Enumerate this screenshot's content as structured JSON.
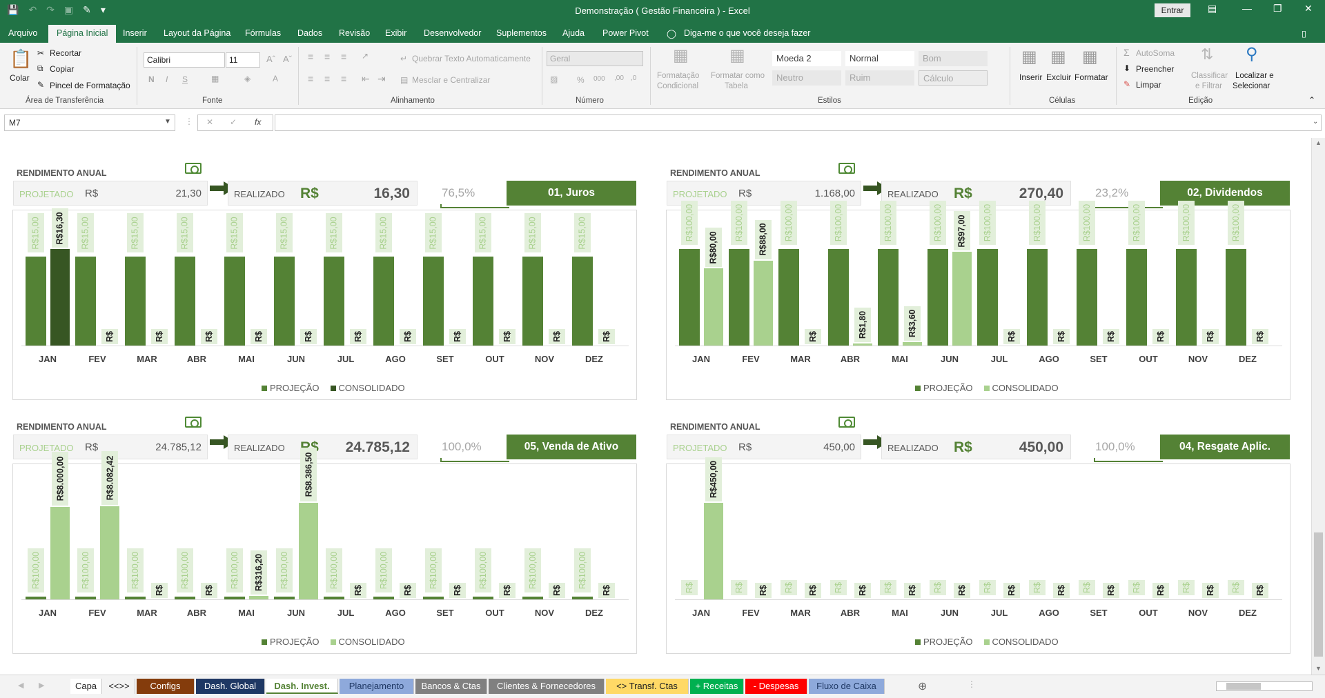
{
  "window": {
    "title": "Demonstração ( Gestão Financeira ) - Excel",
    "signin": "Entrar"
  },
  "ribbon_tabs": [
    "Arquivo",
    "Página Inicial",
    "Inserir",
    "Layout da Página",
    "Fórmulas",
    "Dados",
    "Revisão",
    "Exibir",
    "Desenvolvedor",
    "Suplementos",
    "Ajuda",
    "Power Pivot"
  ],
  "tell_me": "Diga-me o que você deseja fazer",
  "ribbon": {
    "clipboard": {
      "paste": "Colar",
      "cut": "Recortar",
      "copy": "Copiar",
      "painter": "Pincel de Formatação",
      "label": "Área de Transferência"
    },
    "font": {
      "name": "Calibri",
      "size": "11",
      "label": "Fonte"
    },
    "alignment": {
      "wrap": "Quebrar Texto Automaticamente",
      "merge": "Mesclar e Centralizar",
      "label": "Alinhamento"
    },
    "number": {
      "format": "Geral",
      "label": "Número"
    },
    "styles": {
      "cond_line1": "Formatação",
      "cond_line2": "Condicional",
      "table_line1": "Formatar como",
      "table_line2": "Tabela",
      "s1": "Moeda 2",
      "s2": "Normal",
      "s3": "Bom",
      "s4": "Neutro",
      "s5": "Ruim",
      "s6": "Cálculo",
      "label": "Estilos"
    },
    "cells": {
      "insert": "Inserir",
      "delete": "Excluir",
      "format": "Formatar",
      "label": "Células"
    },
    "editing": {
      "autosum": "AutoSoma",
      "fill": "Preencher",
      "clear": "Limpar",
      "sort_line1": "Classificar",
      "sort_line2": "e Filtrar",
      "find_line1": "Localizar e",
      "find_line2": "Selecionar",
      "label": "Edição"
    }
  },
  "formula_bar": {
    "namebox": "M7",
    "formula": ""
  },
  "colors": {
    "dark": "#548235",
    "darker": "#375623",
    "light": "#a9d18e",
    "pale": "#e2efda"
  },
  "panels": [
    {
      "rend": "RENDIMENTO ANUAL",
      "proj_label": "PROJETADO",
      "cur": "R$",
      "proj_value": "21,30",
      "real_label": "REALIZADO",
      "real_value": "16,30",
      "pct": "76,5%",
      "category": "01,  Juros",
      "chart_data": {
        "type": "bar",
        "categories": [
          "JAN",
          "FEV",
          "MAR",
          "ABR",
          "MAI",
          "JUN",
          "JUL",
          "AGO",
          "SET",
          "OUT",
          "NOV",
          "DEZ"
        ],
        "series": [
          {
            "name": "PROJEÇÃO",
            "values": [
              15,
              15,
              15,
              15,
              15,
              15,
              15,
              15,
              15,
              15,
              15,
              15
            ],
            "labels": [
              "R$15,00",
              "R$15,00",
              "R$15,00",
              "R$15,00",
              "R$15,00",
              "R$15,00",
              "R$15,00",
              "R$15,00",
              "R$15,00",
              "R$15,00",
              "R$15,00",
              "R$15,00"
            ]
          },
          {
            "name": "CONSOLIDADO",
            "values": [
              16.3,
              0,
              0,
              0,
              0,
              0,
              0,
              0,
              0,
              0,
              0,
              0
            ],
            "labels": [
              "R$16,30",
              "R$",
              "R$",
              "R$",
              "R$",
              "R$",
              "R$",
              "R$",
              "R$",
              "R$",
              "R$",
              "R$"
            ]
          }
        ],
        "ymax": 16.3,
        "cons_color": "#375623"
      }
    },
    {
      "rend": "RENDIMENTO ANUAL",
      "proj_label": "PROJETADO",
      "cur": "R$",
      "proj_value": "1.168,00",
      "real_label": "REALIZADO",
      "real_value": "270,40",
      "pct": "23,2%",
      "category": "02,  Dividendos",
      "chart_data": {
        "type": "bar",
        "categories": [
          "JAN",
          "FEV",
          "MAR",
          "ABR",
          "MAI",
          "JUN",
          "JUL",
          "AGO",
          "SET",
          "OUT",
          "NOV",
          "DEZ"
        ],
        "series": [
          {
            "name": "PROJEÇÃO",
            "values": [
              100,
              100,
              100,
              100,
              100,
              100,
              100,
              100,
              100,
              100,
              100,
              100
            ],
            "labels": [
              "R$100,00",
              "R$100,00",
              "R$100,00",
              "R$100,00",
              "R$100,00",
              "R$100,00",
              "R$100,00",
              "R$100,00",
              "R$100,00",
              "R$100,00",
              "R$100,00",
              "R$100,00"
            ]
          },
          {
            "name": "CONSOLIDADO",
            "values": [
              80,
              88,
              0,
              1.8,
              3.6,
              97,
              0,
              0,
              0,
              0,
              0,
              0
            ],
            "labels": [
              "R$80,00",
              "R$88,00",
              "R$",
              "R$1,80",
              "R$3,60",
              "R$97,00",
              "R$",
              "R$",
              "R$",
              "R$",
              "R$",
              "R$"
            ]
          }
        ],
        "ymax": 100,
        "cons_color": "#a9d18e"
      }
    },
    {
      "rend": "RENDIMENTO ANUAL",
      "proj_label": "PROJETADO",
      "cur": "R$",
      "proj_value": "24.785,12",
      "real_label": "REALIZADO",
      "real_value": "24.785,12",
      "pct": "100,0%",
      "category": "05,  Venda de Ativo",
      "chart_data": {
        "type": "bar",
        "categories": [
          "JAN",
          "FEV",
          "MAR",
          "ABR",
          "MAI",
          "JUN",
          "JUL",
          "AGO",
          "SET",
          "OUT",
          "NOV",
          "DEZ"
        ],
        "series": [
          {
            "name": "PROJEÇÃO",
            "values": [
              100,
              100,
              100,
              100,
              100,
              100,
              100,
              100,
              100,
              100,
              100,
              100
            ],
            "labels": [
              "R$100,00",
              "R$100,00",
              "R$100,00",
              "R$100,00",
              "R$100,00",
              "R$100,00",
              "R$100,00",
              "R$100,00",
              "R$100,00",
              "R$100,00",
              "R$100,00",
              "R$100,00"
            ]
          },
          {
            "name": "CONSOLIDADO",
            "values": [
              8000,
              8082.42,
              0,
              0,
              316.2,
              8386.5,
              0,
              0,
              0,
              0,
              0,
              0
            ],
            "labels": [
              "R$8.000,00",
              "R$8.082,42",
              "R$",
              "R$",
              "R$316,20",
              "R$8.386,50",
              "R$",
              "R$",
              "R$",
              "R$",
              "R$",
              "R$"
            ]
          }
        ],
        "ymax": 8386.5,
        "cons_color": "#a9d18e"
      }
    },
    {
      "rend": "RENDIMENTO ANUAL",
      "proj_label": "PROJETADO",
      "cur": "R$",
      "proj_value": "450,00",
      "real_label": "REALIZADO",
      "real_value": "450,00",
      "pct": "100,0%",
      "category": "04,  Resgate Aplic.",
      "chart_data": {
        "type": "bar",
        "categories": [
          "JAN",
          "FEV",
          "MAR",
          "ABR",
          "MAI",
          "JUN",
          "JUL",
          "AGO",
          "SET",
          "OUT",
          "NOV",
          "DEZ"
        ],
        "series": [
          {
            "name": "PROJEÇÃO",
            "values": [
              0,
              0,
              0,
              0,
              0,
              0,
              0,
              0,
              0,
              0,
              0,
              0
            ],
            "labels": [
              "R$",
              "R$",
              "R$",
              "R$",
              "R$",
              "R$",
              "R$",
              "R$",
              "R$",
              "R$",
              "R$",
              "R$"
            ]
          },
          {
            "name": "CONSOLIDADO",
            "values": [
              450,
              0,
              0,
              0,
              0,
              0,
              0,
              0,
              0,
              0,
              0,
              0
            ],
            "labels": [
              "R$450,00",
              "R$",
              "R$",
              "R$",
              "R$",
              "R$",
              "R$",
              "R$",
              "R$",
              "R$",
              "R$",
              "R$"
            ]
          }
        ],
        "ymax": 450,
        "cons_color": "#a9d18e"
      }
    }
  ],
  "sheet_tabs": [
    {
      "label": "Capa",
      "bg": "#ffffff",
      "fg": "#222222"
    },
    {
      "label": "<<>>",
      "bg": "#f3f3f3",
      "fg": "#222222"
    },
    {
      "label": "Configs",
      "bg": "#843c0c",
      "fg": "#ffffff"
    },
    {
      "label": "Dash. Global",
      "bg": "#1f3864",
      "fg": "#ffffff"
    },
    {
      "label": "Dash. Invest.",
      "bg": "#ffffff",
      "fg": "#548235"
    },
    {
      "label": "Planejamento",
      "bg": "#8ea9db",
      "fg": "#1f3864"
    },
    {
      "label": "Bancos & Ctas",
      "bg": "#808080",
      "fg": "#ffffff"
    },
    {
      "label": "Clientes & Fornecedores",
      "bg": "#808080",
      "fg": "#ffffff"
    },
    {
      "label": "<> Transf. Ctas",
      "bg": "#ffd966",
      "fg": "#222222"
    },
    {
      "label": "+ Receitas",
      "bg": "#00b050",
      "fg": "#ffffff"
    },
    {
      "label": "- Despesas",
      "bg": "#ff0000",
      "fg": "#ffffff"
    },
    {
      "label": "Fluxo de Caixa",
      "bg": "#8ea9db",
      "fg": "#1f3864"
    }
  ]
}
